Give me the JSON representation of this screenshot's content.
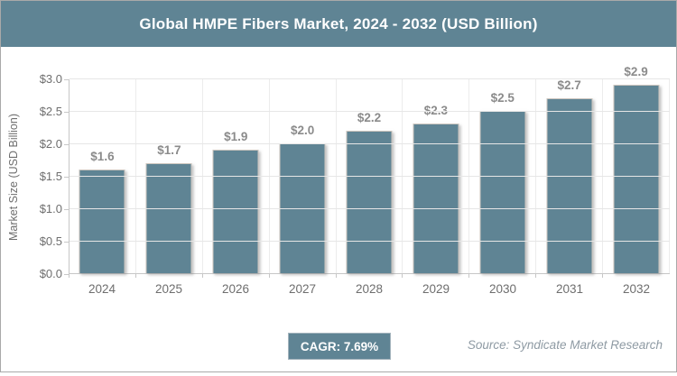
{
  "header": {
    "title": "Global HMPE Fibers Market, 2024 - 2032 (USD Billion)"
  },
  "footer": {
    "cagr_label": "CAGR: 7.69%",
    "source": "Source: Syndicate Market Research"
  },
  "colors": {
    "accent": "#5f8494",
    "bar": "#5f8494",
    "grid": "#e6e6e6",
    "axis": "#c7c7c7",
    "value_label": "#8b8b8b",
    "tick_label": "#6e6e6e",
    "title_text": "#ffffff"
  },
  "chart_data": {
    "type": "bar",
    "title": "Global HMPE Fibers Market, 2024 - 2032 (USD Billion)",
    "categories": [
      "2024",
      "2025",
      "2026",
      "2027",
      "2028",
      "2029",
      "2030",
      "2031",
      "2032"
    ],
    "values": [
      1.6,
      1.7,
      1.9,
      2.0,
      2.2,
      2.3,
      2.5,
      2.7,
      2.9
    ],
    "value_labels": [
      "$1.6",
      "$1.7",
      "$1.9",
      "$2.0",
      "$2.2",
      "$2.3",
      "$2.5",
      "$2.7",
      "$2.9"
    ],
    "xlabel": "",
    "ylabel": "Market Size (USD Billion)",
    "ylim": [
      0,
      3.0
    ],
    "yticks": [
      0,
      0.5,
      1.0,
      1.5,
      2.0,
      2.5,
      3.0
    ],
    "ytick_labels": [
      "$0.0",
      "$0.5",
      "$1.0",
      "$1.5",
      "$2.0",
      "$2.5",
      "$3.0"
    ],
    "grid": true,
    "legend": false,
    "bar_color": "#5f8494"
  }
}
